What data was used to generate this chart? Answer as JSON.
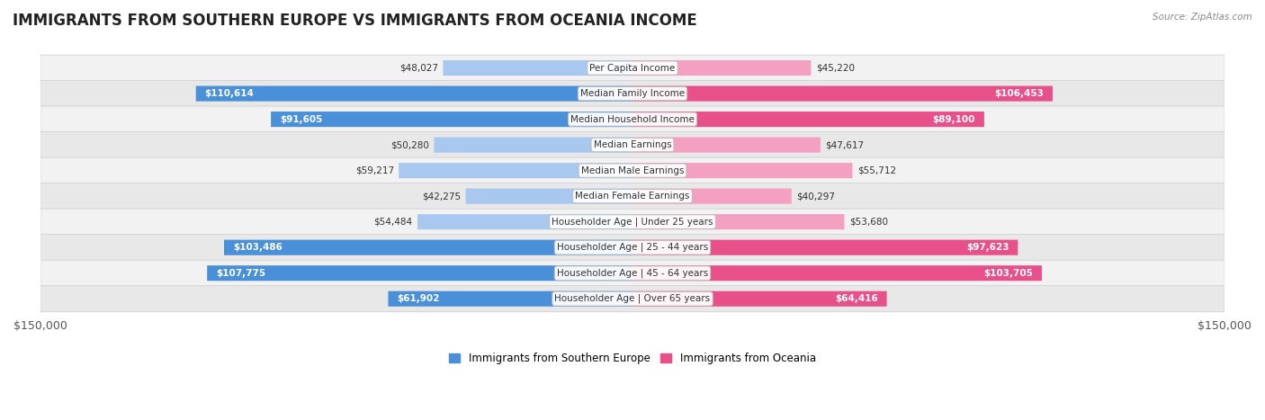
{
  "title": "IMMIGRANTS FROM SOUTHERN EUROPE VS IMMIGRANTS FROM OCEANIA INCOME",
  "source": "Source: ZipAtlas.com",
  "categories": [
    "Per Capita Income",
    "Median Family Income",
    "Median Household Income",
    "Median Earnings",
    "Median Male Earnings",
    "Median Female Earnings",
    "Householder Age | Under 25 years",
    "Householder Age | 25 - 44 years",
    "Householder Age | 45 - 64 years",
    "Householder Age | Over 65 years"
  ],
  "left_values": [
    48027,
    110614,
    91605,
    50280,
    59217,
    42275,
    54484,
    103486,
    107775,
    61902
  ],
  "right_values": [
    45220,
    106453,
    89100,
    47617,
    55712,
    40297,
    53680,
    97623,
    103705,
    64416
  ],
  "left_labels": [
    "$48,027",
    "$110,614",
    "$91,605",
    "$50,280",
    "$59,217",
    "$42,275",
    "$54,484",
    "$103,486",
    "$107,775",
    "$61,902"
  ],
  "right_labels": [
    "$45,220",
    "$106,453",
    "$89,100",
    "$47,617",
    "$55,712",
    "$40,297",
    "$53,680",
    "$97,623",
    "$103,705",
    "$64,416"
  ],
  "max_value": 150000,
  "left_color_dark": "#4a90d9",
  "left_color_light": "#a8c8f0",
  "right_color_dark": "#e8508a",
  "right_color_light": "#f4a0c0",
  "bar_height": 0.6,
  "row_bg_light": "#f2f2f2",
  "row_bg_dark": "#e8e8e8",
  "legend_left": "Immigrants from Southern Europe",
  "legend_right": "Immigrants from Oceania",
  "x_tick_labels": [
    "$150,000",
    "$150,000"
  ],
  "title_fontsize": 12,
  "label_fontsize": 8,
  "axis_label_fontsize": 9,
  "white_label_threshold": 60000
}
